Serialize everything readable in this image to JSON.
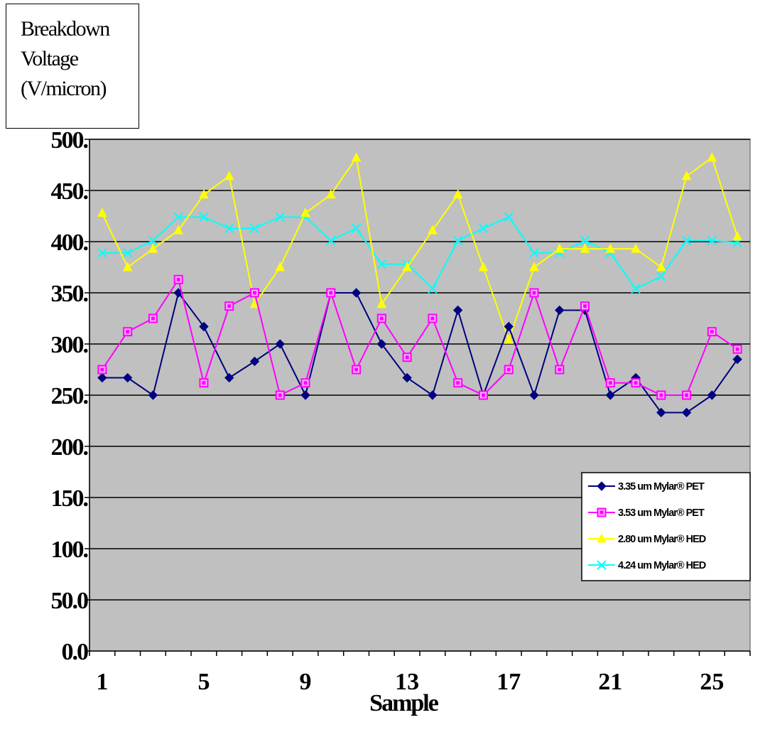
{
  "chart_data": {
    "type": "line",
    "ylabel_lines": [
      "Breakdown",
      "Voltage",
      "(V/micron)"
    ],
    "xlabel": "Sample",
    "ylim": [
      0,
      500
    ],
    "y_ticks": [
      0,
      50,
      100,
      150,
      200,
      250,
      300,
      350,
      400,
      450,
      500
    ],
    "y_tick_labels": [
      "0.0",
      "50.0",
      "100.",
      "150.",
      "200.",
      "250.",
      "300.",
      "350.",
      "400.",
      "450.",
      "500."
    ],
    "x": [
      1,
      2,
      3,
      4,
      5,
      6,
      7,
      8,
      9,
      10,
      11,
      12,
      13,
      14,
      15,
      16,
      17,
      18,
      19,
      20,
      21,
      22,
      23,
      24,
      25,
      26
    ],
    "x_tick_labels": [
      "1",
      "5",
      "9",
      "13",
      "17",
      "21",
      "25"
    ],
    "x_tick_label_values": [
      1,
      5,
      9,
      13,
      17,
      21,
      25
    ],
    "grid": true,
    "plot_background": "#c0c0c0",
    "legend_position": "right",
    "series": [
      {
        "name": "3.35 um Mylar® PET",
        "color": "#000080",
        "marker": "diamond",
        "values": [
          267,
          267,
          250,
          350,
          317,
          267,
          283,
          300,
          250,
          350,
          350,
          300,
          267,
          250,
          333,
          250,
          317,
          250,
          333,
          333,
          250,
          267,
          233,
          233,
          250,
          285
        ]
      },
      {
        "name": "3.53 um Mylar® PET",
        "color": "#ff00ff",
        "marker": "square",
        "values": [
          275,
          312,
          325,
          363,
          262,
          337,
          350,
          250,
          262,
          350,
          275,
          325,
          287,
          325,
          262,
          250,
          275,
          350,
          275,
          337,
          262,
          262,
          250,
          250,
          312,
          295
        ]
      },
      {
        "name": "2.80 um Mylar® HED",
        "color": "#ffff00",
        "marker": "triangle",
        "values": [
          428,
          375,
          393,
          411,
          446,
          464,
          339,
          375,
          428,
          446,
          482,
          339,
          375,
          411,
          446,
          375,
          304,
          375,
          393,
          393,
          393,
          393,
          375,
          464,
          482,
          405
        ]
      },
      {
        "name": "4.24 um Mylar® HED",
        "color": "#00ffff",
        "marker": "x",
        "values": [
          389,
          389,
          401,
          424,
          424,
          413,
          413,
          424,
          424,
          401,
          413,
          378,
          378,
          354,
          401,
          413,
          424,
          389,
          389,
          401,
          389,
          354,
          366,
          401,
          401,
          399
        ]
      }
    ]
  }
}
